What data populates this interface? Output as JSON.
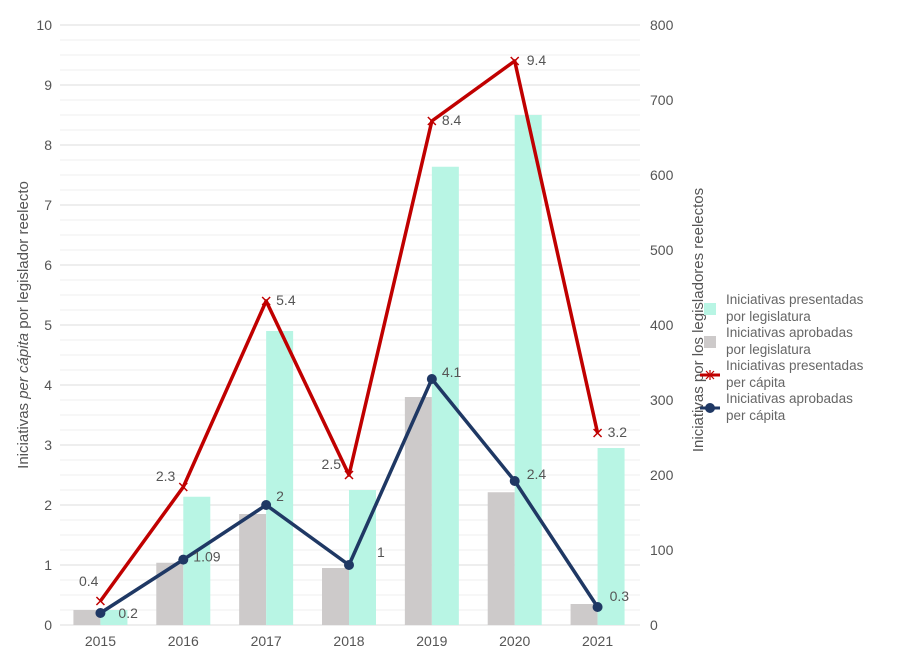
{
  "chart_data": {
    "type": "bar+line",
    "categories": [
      "2015",
      "2016",
      "2017",
      "2018",
      "2019",
      "2020",
      "2021"
    ],
    "y_left": {
      "label_prefix": "Iniciativas ",
      "label_italic": "per cápita",
      "label_suffix": " por legislador reelecto",
      "range": [
        0,
        10
      ],
      "ticks": [
        "0",
        "1",
        "2",
        "3",
        "4",
        "5",
        "6",
        "7",
        "8",
        "9",
        "10"
      ]
    },
    "y_right": {
      "label": "Iniciativas por los legisladores reelectos",
      "range": [
        0,
        800
      ],
      "ticks": [
        "0",
        "100",
        "200",
        "300",
        "400",
        "500",
        "600",
        "700",
        "800"
      ]
    },
    "series": [
      {
        "name": "Iniciativas presentadas por legislatura",
        "name_lines": [
          "Iniciativas presentadas",
          "por legislatura"
        ],
        "type": "bar",
        "axis": "right",
        "color": "#b8f5e4",
        "values": [
          20,
          171,
          392,
          180,
          611,
          680,
          236
        ]
      },
      {
        "name": "Iniciativas aprobadas por legislatura",
        "name_lines": [
          "Iniciativas aprobadas",
          "por legislatura"
        ],
        "type": "bar",
        "axis": "right",
        "color": "#cdcaca",
        "values": [
          20,
          83,
          148,
          76,
          304,
          177,
          28
        ]
      },
      {
        "name": "Iniciativas presentadas per cápita",
        "name_lines": [
          "Iniciativas presentadas",
          "per cápita"
        ],
        "type": "line",
        "axis": "left",
        "color": "#c00000",
        "marker": "x",
        "values": [
          0.4,
          2.3,
          5.4,
          2.5,
          8.4,
          9.4,
          3.2
        ],
        "labels": [
          "0.4",
          "2.3",
          "5.4",
          "2.5",
          "8.4",
          "9.4",
          "3.2"
        ]
      },
      {
        "name": "Iniciativas aprobadas per cápita",
        "name_lines": [
          "Iniciativas aprobadas",
          "per cápita"
        ],
        "type": "line",
        "axis": "left",
        "color": "#1f3864",
        "marker": "circle",
        "values": [
          0.2,
          1.09,
          2,
          1,
          4.1,
          2.4,
          0.3
        ],
        "labels": [
          "0.2",
          "1.09",
          "2",
          "1",
          "4.1",
          "2.4",
          "0.3"
        ]
      }
    ],
    "grid": true,
    "legend_placement": "right"
  }
}
